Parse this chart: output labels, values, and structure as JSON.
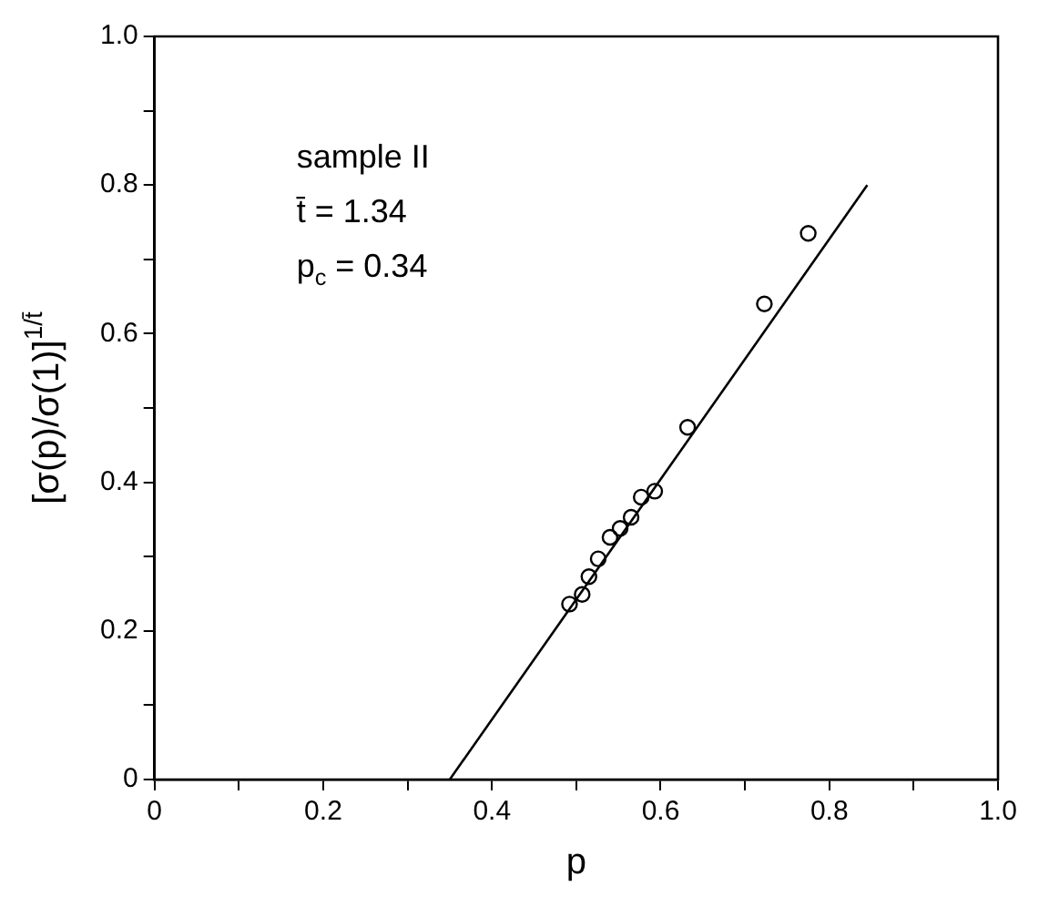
{
  "chart_data": {
    "type": "scatter",
    "xlabel": "p",
    "ylabel": "[σ(p)/σ(1)]$^{1/t̄}$",
    "annotations": [
      "sample II",
      "t̄ = 1.34",
      "p$_{c}$ = 0.34"
    ],
    "series": [
      {
        "type": "scatter",
        "color": "#000000",
        "marker": "circle",
        "x": [
          0.492,
          0.507,
          0.515,
          0.526,
          0.54,
          0.552,
          0.565,
          0.577,
          0.593,
          0.632,
          0.723,
          0.775
        ],
        "values": [
          0.236,
          0.249,
          0.273,
          0.297,
          0.326,
          0.338,
          0.353,
          0.38,
          0.388,
          0.474,
          0.64,
          0.735
        ]
      },
      {
        "type": "line",
        "color": "#000000",
        "marker": "none",
        "x": [
          0.35,
          0.845
        ],
        "values": [
          0,
          0.8
        ]
      }
    ],
    "xlim": [
      0,
      1
    ],
    "ylim": [
      0,
      1
    ],
    "xticks": [
      0,
      {
        "value": 0.1,
        "label": null
      },
      0.2,
      {
        "value": 0.3,
        "label": null
      },
      0.4,
      {
        "value": 0.5,
        "label": null
      },
      0.6,
      {
        "value": 0.7,
        "label": null
      },
      0.8,
      {
        "value": 0.9,
        "label": null
      },
      {
        "value": 1,
        "label": "1.0"
      }
    ],
    "yticks": [
      0,
      {
        "value": 0.1,
        "label": null
      },
      0.2,
      {
        "value": 0.3,
        "label": null
      },
      0.4,
      {
        "value": 0.5,
        "label": null
      },
      0.6,
      {
        "value": 0.7,
        "label": null
      },
      0.8,
      {
        "value": 0.9,
        "label": null
      },
      {
        "value": 1,
        "label": "1.0"
      }
    ],
    "grid": false,
    "legend": false
  }
}
